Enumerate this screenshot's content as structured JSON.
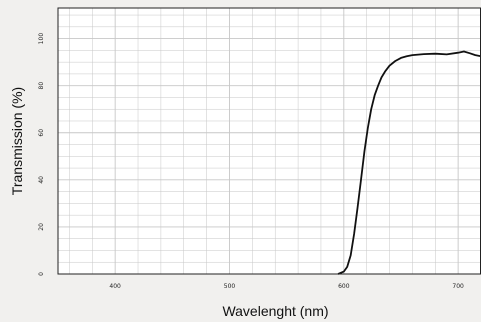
{
  "chart_data": {
    "type": "line",
    "title": "",
    "xlabel": "Wavelenght (nm)",
    "ylabel": "Transmission (%)",
    "xlim": [
      350,
      720
    ],
    "ylim": [
      0,
      113
    ],
    "x_ticks": [
      400,
      500,
      600,
      700
    ],
    "y_ticks": [
      0,
      20,
      40,
      60,
      80,
      100
    ],
    "grid": true,
    "legend": "none",
    "colors": {
      "line": "#111111",
      "grid": "#c7c7c7",
      "background": "#ffffff"
    },
    "series": [
      {
        "x": [
          595,
          600,
          603,
          606,
          609,
          612,
          615,
          618,
          621,
          624,
          627,
          630,
          633,
          636,
          640,
          645,
          650,
          655,
          660,
          670,
          680,
          690,
          700,
          705,
          710,
          715,
          720
        ],
        "y": [
          0,
          1,
          3,
          8,
          17,
          28,
          40,
          52,
          62,
          70,
          76,
          80,
          83.5,
          86,
          88.5,
          90.5,
          91.8,
          92.5,
          93,
          93.4,
          93.6,
          93.3,
          94,
          94.5,
          93.8,
          93.0,
          92.5
        ]
      }
    ]
  }
}
